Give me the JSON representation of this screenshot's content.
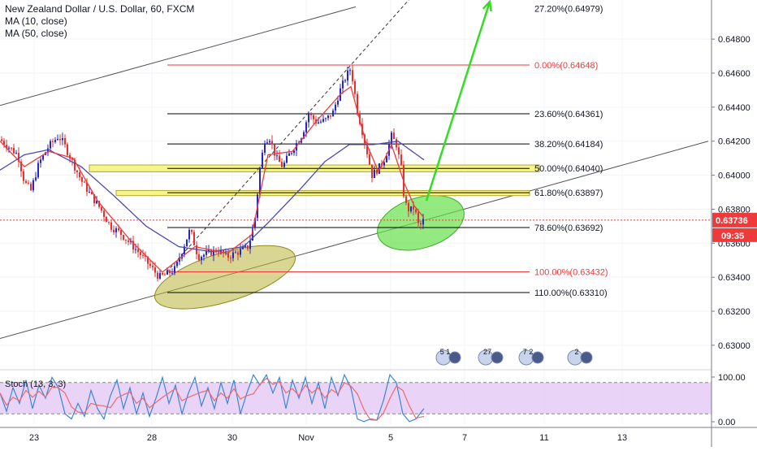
{
  "header": {
    "symbol_line": "New Zealand Dollar / U.S. Dollar, 60, FXCM",
    "ma1_label": "MA (10, close)",
    "ma2_label": "MA (50, close)"
  },
  "colors": {
    "candle_up": "#2626c8",
    "candle_down": "#e62f2f",
    "ma10": "#ee3a3a",
    "ma50": "#4a4ab0",
    "fib_zero_line": "#ee3a3a",
    "fib_line": "#000000",
    "zone_fill": "#f5f58a",
    "zone_stroke": "#b5a530",
    "ellipse_olive": "#b9b43a",
    "ellipse_green": "#66e04a",
    "arrow": "#33dd22",
    "price_tag": "#ee3a3a",
    "stoch_band": "#e4c8f5",
    "stoch_k": "#3a86d8",
    "stoch_d": "#ee6a6a"
  },
  "price_axis": {
    "labels": [
      "0.64800",
      "0.64600",
      "0.64400",
      "0.64200",
      "0.64000",
      "0.63800",
      "0.63600",
      "0.63400",
      "0.63200",
      "0.63000"
    ],
    "current_price": "0.63736",
    "countdown": "09:35"
  },
  "time_axis": {
    "labels": [
      "23",
      "28",
      "30",
      "Nov",
      "5",
      "7",
      "11",
      "13"
    ]
  },
  "fib_levels": [
    {
      "label": "27.20%(0.64979)",
      "price": 0.64979
    },
    {
      "label": "0.00%(0.64648)",
      "price": 0.64648
    },
    {
      "label": "23.60%(0.64361)",
      "price": 0.64361
    },
    {
      "label": "38.20%(0.64184)",
      "price": 0.64184
    },
    {
      "label": "50.00%(0.64040)",
      "price": 0.6404
    },
    {
      "label": "61.80%(0.63897)",
      "price": 0.63897
    },
    {
      "label": "78.60%(0.63692)",
      "price": 0.63692
    },
    {
      "label": "100.00%(0.63432)",
      "price": 0.63432
    },
    {
      "label": "110.00%(0.63310)",
      "price": 0.6331
    }
  ],
  "event_icons": [
    "5 1",
    "27",
    "7 2",
    "2"
  ],
  "stoch": {
    "label": "Stoch (13, 3, 3)",
    "axis_labels": [
      "100.00",
      "0.00"
    ],
    "bands": [
      80,
      20
    ]
  },
  "chart_data": {
    "type": "candlestick",
    "title": "New Zealand Dollar / U.S. Dollar, 60, FXCM",
    "y_range": [
      0.6288,
      0.6503
    ],
    "x_labels": [
      "23",
      "28",
      "30",
      "Nov",
      "5",
      "7",
      "11",
      "13"
    ],
    "price_anchors": [
      [
        0,
        0.6421
      ],
      [
        10,
        0.6417
      ],
      [
        22,
        0.6412
      ],
      [
        30,
        0.6396
      ],
      [
        38,
        0.6391
      ],
      [
        48,
        0.6407
      ],
      [
        60,
        0.6417
      ],
      [
        72,
        0.6423
      ],
      [
        78,
        0.6419
      ],
      [
        88,
        0.6409
      ],
      [
        100,
        0.6397
      ],
      [
        112,
        0.6388
      ],
      [
        124,
        0.638
      ],
      [
        136,
        0.637
      ],
      [
        148,
        0.6366
      ],
      [
        160,
        0.636
      ],
      [
        172,
        0.6354
      ],
      [
        184,
        0.6347
      ],
      [
        196,
        0.634
      ],
      [
        206,
        0.6342
      ],
      [
        216,
        0.6345
      ],
      [
        226,
        0.6358
      ],
      [
        234,
        0.6368
      ],
      [
        244,
        0.6352
      ],
      [
        256,
        0.6354
      ],
      [
        268,
        0.6356
      ],
      [
        280,
        0.6352
      ],
      [
        294,
        0.6355
      ],
      [
        306,
        0.6358
      ],
      [
        314,
        0.6375
      ],
      [
        320,
        0.6404
      ],
      [
        326,
        0.6421
      ],
      [
        332,
        0.6422
      ],
      [
        340,
        0.641
      ],
      [
        348,
        0.6405
      ],
      [
        356,
        0.6412
      ],
      [
        364,
        0.6418
      ],
      [
        372,
        0.6424
      ],
      [
        380,
        0.6436
      ],
      [
        390,
        0.6431
      ],
      [
        400,
        0.6432
      ],
      [
        410,
        0.6437
      ],
      [
        418,
        0.6449
      ],
      [
        426,
        0.6458
      ],
      [
        432,
        0.6463
      ],
      [
        440,
        0.6438
      ],
      [
        450,
        0.6418
      ],
      [
        458,
        0.64
      ],
      [
        466,
        0.6404
      ],
      [
        474,
        0.641
      ],
      [
        482,
        0.6423
      ],
      [
        488,
        0.6418
      ],
      [
        494,
        0.6404
      ],
      [
        498,
        0.6384
      ],
      [
        504,
        0.6379
      ],
      [
        510,
        0.6381
      ],
      [
        516,
        0.6369
      ],
      [
        522,
        0.6374
      ]
    ],
    "ma10_anchors": [
      [
        0,
        0.642
      ],
      [
        30,
        0.6405
      ],
      [
        60,
        0.6414
      ],
      [
        90,
        0.641
      ],
      [
        120,
        0.6385
      ],
      [
        160,
        0.6362
      ],
      [
        200,
        0.6343
      ],
      [
        240,
        0.6358
      ],
      [
        280,
        0.6354
      ],
      [
        310,
        0.6365
      ],
      [
        330,
        0.6412
      ],
      [
        360,
        0.6414
      ],
      [
        390,
        0.6432
      ],
      [
        420,
        0.6448
      ],
      [
        432,
        0.6452
      ],
      [
        450,
        0.642
      ],
      [
        466,
        0.6402
      ],
      [
        482,
        0.6418
      ],
      [
        498,
        0.6395
      ],
      [
        510,
        0.6382
      ],
      [
        522,
        0.6375
      ]
    ],
    "ma50_anchors": [
      [
        0,
        0.6403
      ],
      [
        30,
        0.6412
      ],
      [
        60,
        0.6415
      ],
      [
        100,
        0.6405
      ],
      [
        140,
        0.6388
      ],
      [
        180,
        0.637
      ],
      [
        220,
        0.6358
      ],
      [
        260,
        0.6355
      ],
      [
        300,
        0.6358
      ],
      [
        330,
        0.6372
      ],
      [
        370,
        0.6392
      ],
      [
        400,
        0.6408
      ],
      [
        430,
        0.6418
      ],
      [
        460,
        0.6418
      ],
      [
        490,
        0.642
      ],
      [
        522,
        0.6409
      ]
    ],
    "stoch_k_anchors": [
      [
        0,
        60
      ],
      [
        8,
        25
      ],
      [
        16,
        70
      ],
      [
        24,
        40
      ],
      [
        32,
        85
      ],
      [
        40,
        30
      ],
      [
        48,
        75
      ],
      [
        56,
        50
      ],
      [
        64,
        90
      ],
      [
        72,
        70
      ],
      [
        80,
        20
      ],
      [
        88,
        10
      ],
      [
        96,
        40
      ],
      [
        104,
        15
      ],
      [
        112,
        65
      ],
      [
        120,
        30
      ],
      [
        128,
        10
      ],
      [
        136,
        55
      ],
      [
        144,
        85
      ],
      [
        152,
        30
      ],
      [
        160,
        70
      ],
      [
        168,
        20
      ],
      [
        176,
        60
      ],
      [
        184,
        15
      ],
      [
        192,
        50
      ],
      [
        200,
        90
      ],
      [
        208,
        40
      ],
      [
        216,
        75
      ],
      [
        224,
        20
      ],
      [
        232,
        60
      ],
      [
        240,
        90
      ],
      [
        248,
        35
      ],
      [
        256,
        70
      ],
      [
        264,
        30
      ],
      [
        272,
        80
      ],
      [
        280,
        40
      ],
      [
        288,
        85
      ],
      [
        296,
        20
      ],
      [
        304,
        60
      ],
      [
        312,
        95
      ],
      [
        320,
        75
      ],
      [
        328,
        95
      ],
      [
        336,
        60
      ],
      [
        344,
        90
      ],
      [
        352,
        30
      ],
      [
        360,
        85
      ],
      [
        368,
        50
      ],
      [
        376,
        90
      ],
      [
        384,
        40
      ],
      [
        392,
        80
      ],
      [
        400,
        30
      ],
      [
        408,
        90
      ],
      [
        416,
        55
      ],
      [
        424,
        95
      ],
      [
        432,
        70
      ],
      [
        440,
        10
      ],
      [
        448,
        5
      ],
      [
        456,
        10
      ],
      [
        464,
        8
      ],
      [
        472,
        45
      ],
      [
        480,
        95
      ],
      [
        488,
        80
      ],
      [
        496,
        20
      ],
      [
        504,
        5
      ],
      [
        512,
        10
      ],
      [
        522,
        30
      ]
    ],
    "annotations": {
      "upper_channel_line": [
        [
          0,
          0.6441
        ],
        [
          438,
          0.6499
        ]
      ],
      "lower_channel_line": [
        [
          0,
          0.6304
        ],
        [
          872,
          0.642
        ]
      ],
      "fib_trend_line": [
        [
          205,
          0.6343
        ],
        [
          432,
          0.64648
        ]
      ],
      "resistance_zones": [
        {
          "x": [
            110,
            664
          ],
          "range": [
            0.6402,
            0.6406
          ]
        },
        {
          "x": [
            143,
            652
          ],
          "range": [
            0.6388,
            0.6391
          ]
        }
      ],
      "projection_arrow": {
        "from": [
          525,
          0.6385
        ],
        "to": [
          603,
          0.6502
        ]
      },
      "ellipse_zones": [
        {
          "cx": 277,
          "cy": 0.634,
          "rx": 90,
          "ry": 30,
          "angle": -17
        },
        {
          "cx": 518,
          "cy": 0.6372,
          "rx": 55,
          "ry": 31,
          "angle": -17
        }
      ]
    }
  }
}
